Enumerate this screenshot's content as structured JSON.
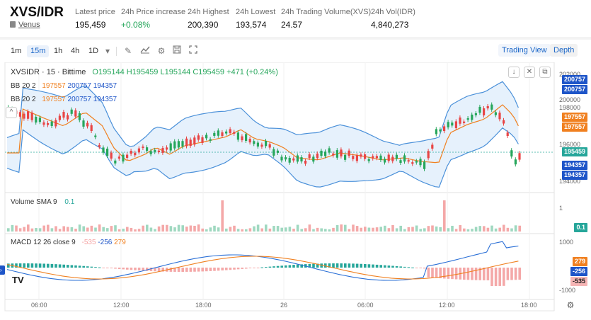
{
  "header": {
    "pair": "XVS/IDR",
    "exchange_link": "Venus",
    "stats": [
      {
        "label": "Latest price",
        "value": "195,459"
      },
      {
        "label": "24h Price increase",
        "value": "+0.08%"
      },
      {
        "label": "24h Highest",
        "value": "200,390"
      },
      {
        "label": "24h Lowest",
        "value": "193,574"
      },
      {
        "label": "24h Trading Volume(XVS)",
        "value": "24.57"
      },
      {
        "label": "24h Vol(IDR)",
        "value": "4,840,273"
      }
    ]
  },
  "toolbar": {
    "timeframes": [
      "1m",
      "15m",
      "1h",
      "4h",
      "1D"
    ],
    "active_timeframe": "15m",
    "tools": [
      "dropdown-icon",
      "draw-icon",
      "indicator-icon",
      "settings-icon",
      "save-icon",
      "fullscreen-icon"
    ],
    "view_tabs": [
      "Trading View",
      "Depth"
    ],
    "active_view": "Trading View"
  },
  "chart": {
    "symbol_line": "XVSIDR · 15 · Bittime",
    "ohlc": {
      "o": "O195144",
      "h": "H195459",
      "l": "L195144",
      "c": "C195459",
      "chg": "+471 (+0.24%)"
    },
    "bb_legend_1": {
      "name": "BB 20 2",
      "v1": "197557",
      "v2": "200757",
      "v3": "194357"
    },
    "bb_legend_2": {
      "name": "BB 20 2",
      "v1": "197557",
      "v2": "200757",
      "v3": "194357"
    },
    "volume_legend": {
      "name": "Volume SMA 9",
      "value": "0.1"
    },
    "macd_legend": {
      "name": "MACD 12 26 close 9",
      "v1": "-535",
      "v2": "-256",
      "v3": "279"
    },
    "price_axis": [
      "202000",
      "200000",
      "198000",
      "196000",
      "194000"
    ],
    "price_tags": [
      {
        "value": "200757",
        "color": "#1e55c8"
      },
      {
        "value": "200757",
        "color": "#1e55c8"
      },
      {
        "value": "197557",
        "color": "#f08020"
      },
      {
        "value": "197557",
        "color": "#f08020"
      },
      {
        "value": "195459",
        "color": "#26a69a"
      },
      {
        "value": "194357",
        "color": "#1e55c8"
      },
      {
        "value": "194357",
        "color": "#1e55c8"
      }
    ],
    "volume_axis": [
      "1"
    ],
    "volume_tag": "0.1",
    "macd_axis": [
      "1000",
      "0",
      "-1000"
    ],
    "macd_tags": [
      {
        "value": "279",
        "color": "#f08020"
      },
      {
        "value": "-256",
        "color": "#1e55c8"
      },
      {
        "value": "-535",
        "color": "#f5b5b5"
      }
    ],
    "time_axis": [
      "06:00",
      "12:00",
      "18:00",
      "26",
      "06:00",
      "12:00",
      "18:00"
    ],
    "colors": {
      "up": "#26a65b",
      "down": "#e84545",
      "bb": "#4a90d9",
      "basis": "#f08020"
    }
  }
}
